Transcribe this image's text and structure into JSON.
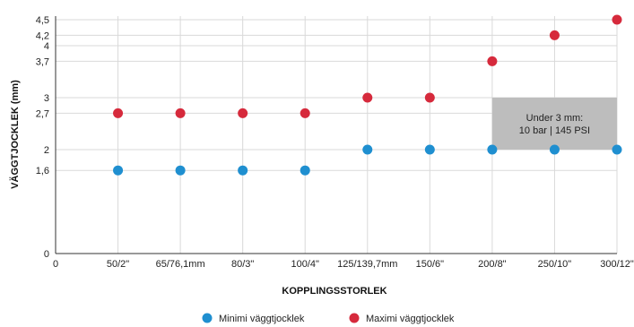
{
  "chart_data": {
    "type": "scatter",
    "title": "",
    "xlabel": "KOPPLINGSSTORLEK",
    "ylabel": "VÄGGTJOCKLEK (mm)",
    "categories": [
      "0",
      "50/2\"",
      "65/76,1mm",
      "80/3\"",
      "100/4\"",
      "125/139,7mm",
      "150/6\"",
      "200/8\"",
      "250/10\"",
      "300/12\""
    ],
    "y_ticks": [
      0,
      1.6,
      2,
      2.7,
      3,
      3.7,
      4,
      4.2,
      4.5
    ],
    "y_tick_labels": [
      "0",
      "1,6",
      "2",
      "2,7",
      "3",
      "3,7",
      "4",
      "4,2",
      "4,5"
    ],
    "ylim": [
      0,
      4.5
    ],
    "grid": true,
    "legend_position": "bottom",
    "series": [
      {
        "name": "Minimi väggtjocklek",
        "color": "#1f8fd0",
        "values": [
          null,
          1.6,
          1.6,
          1.6,
          1.6,
          2,
          2,
          2,
          2,
          2
        ]
      },
      {
        "name": "Maximi väggtjocklek",
        "color": "#d62a3c",
        "values": [
          null,
          2.7,
          2.7,
          2.7,
          2.7,
          3,
          3,
          3.7,
          4.2,
          4.5
        ]
      }
    ],
    "annotation": {
      "lines": [
        "Under 3 mm:",
        "10 bar | 145 PSI"
      ],
      "x_range": [
        7,
        9
      ],
      "y_range": [
        2,
        3
      ],
      "fill": "#bdbdbd"
    }
  }
}
